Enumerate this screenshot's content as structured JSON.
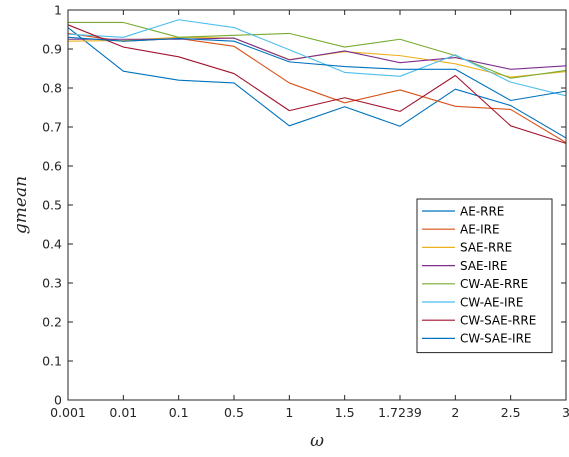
{
  "chart_data": {
    "type": "line",
    "xlabel": "ω",
    "ylabel": "gmean",
    "x_tick_labels": [
      "0.001",
      "0.01",
      "0.1",
      "0.5",
      "1",
      "1.5",
      "1.7239",
      "2",
      "2.5",
      "3"
    ],
    "ylim": [
      0,
      1
    ],
    "y_ticks": [
      0,
      0.1,
      0.2,
      0.3,
      0.4,
      0.5,
      0.6,
      0.7,
      0.8,
      0.9,
      1
    ],
    "grid": false,
    "legend_position": "right",
    "series": [
      {
        "name": "AE-RRE",
        "color": "#0072BD",
        "values": [
          0.955,
          0.843,
          0.82,
          0.813,
          0.703,
          0.752,
          0.702,
          0.797,
          0.755,
          0.672
        ]
      },
      {
        "name": "AE-IRE",
        "color": "#D95319",
        "values": [
          0.94,
          0.92,
          0.927,
          0.907,
          0.813,
          0.762,
          0.795,
          0.753,
          0.745,
          0.66
        ]
      },
      {
        "name": "SAE-RRE",
        "color": "#EDB120",
        "values": [
          0.92,
          0.922,
          0.93,
          0.928,
          0.873,
          0.893,
          0.883,
          0.862,
          0.828,
          0.842
        ]
      },
      {
        "name": "SAE-IRE",
        "color": "#7E2F8E",
        "values": [
          0.925,
          0.925,
          0.925,
          0.928,
          0.872,
          0.895,
          0.865,
          0.878,
          0.848,
          0.857
        ]
      },
      {
        "name": "CW-AE-RRE",
        "color": "#77AC30",
        "values": [
          0.968,
          0.968,
          0.93,
          0.935,
          0.94,
          0.905,
          0.925,
          0.883,
          0.825,
          0.845
        ]
      },
      {
        "name": "CW-AE-IRE",
        "color": "#4DBEEE",
        "values": [
          0.938,
          0.93,
          0.975,
          0.955,
          0.898,
          0.84,
          0.83,
          0.885,
          0.815,
          0.78
        ]
      },
      {
        "name": "CW-SAE-RRE",
        "color": "#A2142F",
        "values": [
          0.962,
          0.905,
          0.88,
          0.837,
          0.742,
          0.775,
          0.74,
          0.832,
          0.703,
          0.658
        ]
      },
      {
        "name": "CW-SAE-IRE",
        "color": "#0072BD",
        "values": [
          0.93,
          0.92,
          0.927,
          0.92,
          0.867,
          0.855,
          0.848,
          0.848,
          0.768,
          0.792
        ]
      }
    ]
  }
}
